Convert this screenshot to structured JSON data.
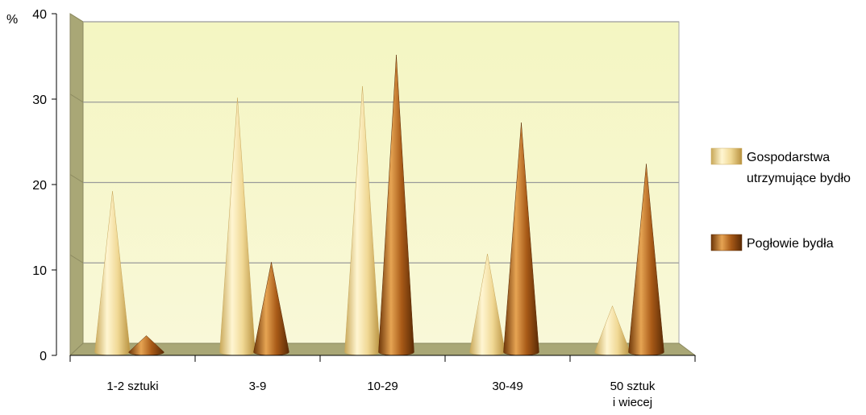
{
  "chart_data": {
    "type": "bar",
    "y_unit": "%",
    "categories": [
      "1-2 sztuki",
      "3-9",
      "10-29",
      "30-49",
      "50 sztuk\ni wiecej"
    ],
    "series": [
      {
        "name": "Gospodarstwa utrzymujące bydło",
        "values": [
          19.5,
          30.8,
          32.2,
          11.9,
          5.6
        ],
        "color": "#f0dc96"
      },
      {
        "name": "Pogłowie bydła",
        "values": [
          2.0,
          10.9,
          36.0,
          27.8,
          22.8
        ],
        "color": "#b5651d"
      }
    ],
    "ylim": [
      0,
      40
    ],
    "yticks": [
      0,
      10,
      20,
      30,
      40
    ],
    "grid": true,
    "legend": "right",
    "background_color": "#f6f7c4",
    "wall_color": "#aaa978"
  }
}
